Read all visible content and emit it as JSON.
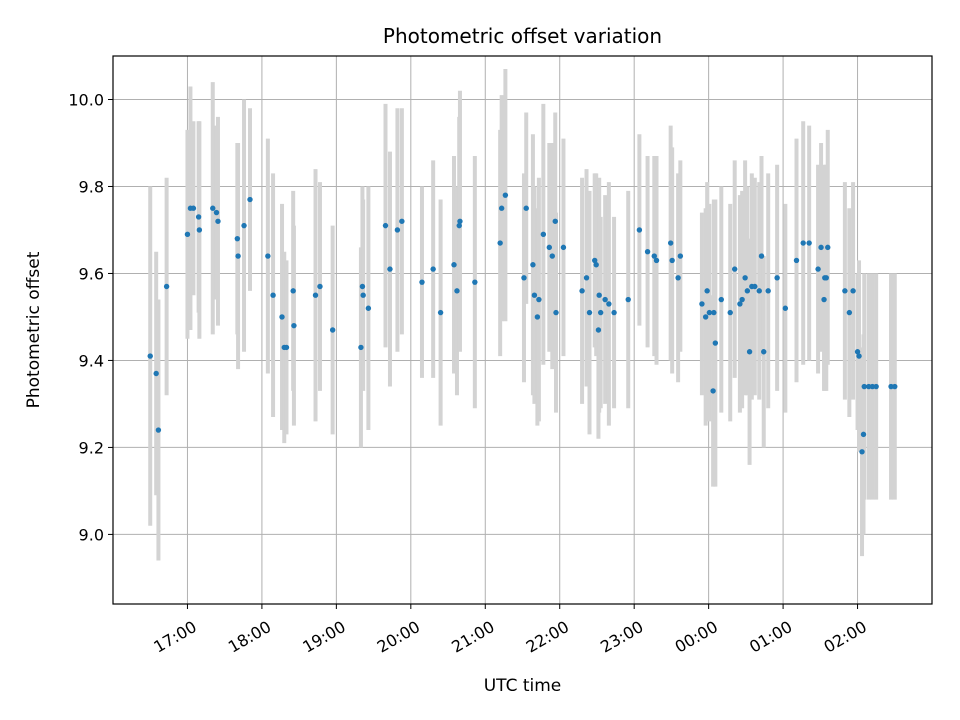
{
  "chart_data": {
    "type": "scatter",
    "title": "Photometric offset variation",
    "xlabel": "UTC time",
    "ylabel": "Photometric offset",
    "x_unit": "hours UTC (values past 24 are after midnight)",
    "xlim": [
      16.0,
      27.0
    ],
    "ylim": [
      8.84,
      10.1
    ],
    "x_ticks": [
      {
        "value": 17,
        "label": "17:00"
      },
      {
        "value": 18,
        "label": "18:00"
      },
      {
        "value": 19,
        "label": "19:00"
      },
      {
        "value": 20,
        "label": "20:00"
      },
      {
        "value": 21,
        "label": "21:00"
      },
      {
        "value": 22,
        "label": "22:00"
      },
      {
        "value": 23,
        "label": "23:00"
      },
      {
        "value": 24,
        "label": "00:00"
      },
      {
        "value": 25,
        "label": "01:00"
      },
      {
        "value": 26,
        "label": "02:00"
      }
    ],
    "y_ticks": [
      {
        "value": 9.0,
        "label": "9.0"
      },
      {
        "value": 9.2,
        "label": "9.2"
      },
      {
        "value": 9.4,
        "label": "9.4"
      },
      {
        "value": 9.6,
        "label": "9.6"
      },
      {
        "value": 9.8,
        "label": "9.8"
      },
      {
        "value": 10.0,
        "label": "10.0"
      }
    ],
    "grid": true,
    "point_color": "#1f77b4",
    "errorbar_color": "#d3d3d3",
    "points": [
      [
        16.5,
        9.41,
        0.39
      ],
      [
        16.58,
        9.37,
        0.28
      ],
      [
        16.61,
        9.24,
        0.3
      ],
      [
        16.72,
        9.57,
        0.25
      ],
      [
        17.0,
        9.69,
        0.24
      ],
      [
        17.04,
        9.75,
        0.28
      ],
      [
        17.08,
        9.75,
        0.2
      ],
      [
        17.15,
        9.73,
        0.22
      ],
      [
        17.16,
        9.7,
        0.25
      ],
      [
        17.34,
        9.75,
        0.29
      ],
      [
        17.39,
        9.74,
        0.2
      ],
      [
        17.41,
        9.72,
        0.24
      ],
      [
        17.67,
        9.68,
        0.22
      ],
      [
        17.68,
        9.64,
        0.26
      ],
      [
        17.76,
        9.71,
        0.29
      ],
      [
        17.84,
        9.77,
        0.21
      ],
      [
        18.08,
        9.64,
        0.27
      ],
      [
        18.15,
        9.55,
        0.28
      ],
      [
        18.27,
        9.5,
        0.26
      ],
      [
        18.3,
        9.43,
        0.22
      ],
      [
        18.33,
        9.43,
        0.2
      ],
      [
        18.42,
        9.56,
        0.23
      ],
      [
        18.43,
        9.48,
        0.23
      ],
      [
        18.72,
        9.55,
        0.29
      ],
      [
        18.78,
        9.57,
        0.24
      ],
      [
        18.95,
        9.47,
        0.24
      ],
      [
        19.33,
        9.43,
        0.23
      ],
      [
        19.35,
        9.57,
        0.23
      ],
      [
        19.36,
        9.55,
        0.22
      ],
      [
        19.43,
        9.52,
        0.28
      ],
      [
        19.66,
        9.71,
        0.28
      ],
      [
        19.72,
        9.61,
        0.27
      ],
      [
        19.82,
        9.7,
        0.28
      ],
      [
        19.88,
        9.72,
        0.26
      ],
      [
        20.15,
        9.58,
        0.22
      ],
      [
        20.3,
        9.61,
        0.25
      ],
      [
        20.4,
        9.51,
        0.26
      ],
      [
        20.58,
        9.62,
        0.25
      ],
      [
        20.62,
        9.56,
        0.24
      ],
      [
        20.65,
        9.71,
        0.25
      ],
      [
        20.66,
        9.72,
        0.3
      ],
      [
        20.86,
        9.58,
        0.29
      ],
      [
        21.2,
        9.67,
        0.26
      ],
      [
        21.22,
        9.75,
        0.26
      ],
      [
        21.27,
        9.78,
        0.29
      ],
      [
        21.52,
        9.59,
        0.24
      ],
      [
        21.55,
        9.75,
        0.22
      ],
      [
        21.64,
        9.62,
        0.3
      ],
      [
        21.66,
        9.55,
        0.25
      ],
      [
        21.7,
        9.5,
        0.25
      ],
      [
        21.72,
        9.54,
        0.28
      ],
      [
        21.78,
        9.69,
        0.3
      ],
      [
        21.86,
        9.66,
        0.24
      ],
      [
        21.9,
        9.64,
        0.26
      ],
      [
        21.94,
        9.72,
        0.25
      ],
      [
        21.95,
        9.51,
        0.23
      ],
      [
        22.05,
        9.66,
        0.25
      ],
      [
        22.3,
        9.56,
        0.26
      ],
      [
        22.36,
        9.59,
        0.25
      ],
      [
        22.4,
        9.51,
        0.28
      ],
      [
        22.47,
        9.63,
        0.2
      ],
      [
        22.49,
        9.62,
        0.21
      ],
      [
        22.52,
        9.47,
        0.25
      ],
      [
        22.53,
        9.55,
        0.27
      ],
      [
        22.55,
        9.51,
        0.22
      ],
      [
        22.61,
        9.54,
        0.24
      ],
      [
        22.66,
        9.53,
        0.28
      ],
      [
        22.73,
        9.51,
        0.22
      ],
      [
        22.92,
        9.54,
        0.25
      ],
      [
        23.07,
        9.7,
        0.22
      ],
      [
        23.18,
        9.65,
        0.22
      ],
      [
        23.27,
        9.64,
        0.23
      ],
      [
        23.3,
        9.63,
        0.24
      ],
      [
        23.49,
        9.67,
        0.27
      ],
      [
        23.51,
        9.63,
        0.26
      ],
      [
        23.59,
        9.59,
        0.24
      ],
      [
        23.62,
        9.64,
        0.22
      ],
      [
        23.91,
        9.53,
        0.21
      ],
      [
        23.96,
        9.5,
        0.25
      ],
      [
        23.98,
        9.56,
        0.25
      ],
      [
        24.01,
        9.51,
        0.25
      ],
      [
        24.06,
        9.33,
        0.22
      ],
      [
        24.07,
        9.51,
        0.26
      ],
      [
        24.09,
        9.44,
        0.33
      ],
      [
        24.17,
        9.54,
        0.26
      ],
      [
        24.29,
        9.51,
        0.25
      ],
      [
        24.35,
        9.61,
        0.25
      ],
      [
        24.42,
        9.53,
        0.25
      ],
      [
        24.45,
        9.54,
        0.25
      ],
      [
        24.49,
        9.59,
        0.27
      ],
      [
        24.52,
        9.56,
        0.24
      ],
      [
        24.55,
        9.42,
        0.26
      ],
      [
        24.58,
        9.57,
        0.26
      ],
      [
        24.62,
        9.57,
        0.25
      ],
      [
        24.68,
        9.56,
        0.25
      ],
      [
        24.71,
        9.64,
        0.23
      ],
      [
        24.74,
        9.42,
        0.22
      ],
      [
        24.8,
        9.56,
        0.27
      ],
      [
        24.92,
        9.59,
        0.26
      ],
      [
        25.03,
        9.52,
        0.24
      ],
      [
        25.18,
        9.63,
        0.28
      ],
      [
        25.27,
        9.67,
        0.28
      ],
      [
        25.35,
        9.67,
        0.27
      ],
      [
        25.47,
        9.61,
        0.24
      ],
      [
        25.51,
        9.66,
        0.24
      ],
      [
        25.55,
        9.54,
        0.21
      ],
      [
        25.56,
        9.59,
        0.26
      ],
      [
        25.58,
        9.59,
        0.26
      ],
      [
        25.6,
        9.66,
        0.27
      ],
      [
        25.83,
        9.56,
        0.25
      ],
      [
        25.89,
        9.51,
        0.24
      ],
      [
        25.94,
        9.56,
        0.25
      ],
      [
        26.0,
        9.42,
        0.18
      ],
      [
        26.02,
        9.41,
        0.22
      ],
      [
        26.06,
        9.19,
        0.24
      ],
      [
        26.08,
        9.23,
        0.23
      ],
      [
        26.09,
        9.34,
        0.26
      ],
      [
        26.15,
        9.34,
        0.26
      ],
      [
        26.2,
        9.34,
        0.26
      ],
      [
        26.25,
        9.34,
        0.26
      ],
      [
        26.45,
        9.34,
        0.26
      ],
      [
        26.5,
        9.34,
        0.26
      ]
    ]
  }
}
